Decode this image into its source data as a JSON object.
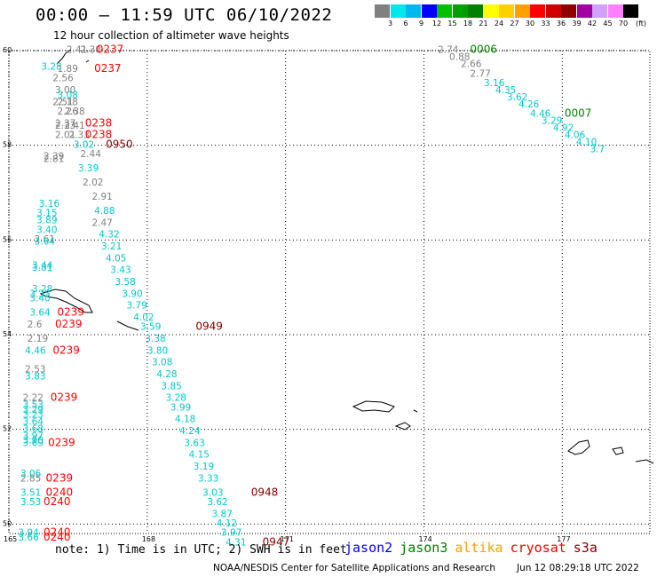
{
  "title": "00:00 – 11:59 UTC 06/10/2022",
  "subtitle": "12 hour collection of altimeter wave heights",
  "colorbar": {
    "unit": "(ft)",
    "ticks": [
      "3",
      "6",
      "9",
      "12",
      "15",
      "18",
      "21",
      "24",
      "27",
      "30",
      "33",
      "36",
      "39",
      "42",
      "45",
      "70"
    ],
    "colors": [
      "#808080",
      "#00e8e8",
      "#00b8f0",
      "#0000ff",
      "#00c000",
      "#00a000",
      "#008000",
      "#ffff00",
      "#ffd000",
      "#ffa000",
      "#ff0000",
      "#d00000",
      "#900000",
      "#a000a0",
      "#d0a0ff",
      "#ff80ff",
      "#000000"
    ]
  },
  "axes": {
    "lat_ticks": [
      "50",
      "52",
      "54",
      "56",
      "58",
      "60"
    ],
    "lon_ticks": [
      "165",
      "168",
      "171",
      "174",
      "177"
    ]
  },
  "note": "note: 1) Time is in UTC; 2) SWH is in feet",
  "missions": [
    {
      "name": "jason2",
      "color": "#0000ff"
    },
    {
      "name": "jason3",
      "color": "#008000"
    },
    {
      "name": "altika",
      "color": "#ffa000"
    },
    {
      "name": "cryosat",
      "color": "#ff0000"
    },
    {
      "name": "s3a",
      "color": "#800000"
    }
  ],
  "credit": "NOAA/NESDIS Center for Satellite Applications and Research",
  "generated": "Jun 12 08:29:18 UTC 2022",
  "obs": [
    {
      "lon": 166.25,
      "lat": 59.95,
      "v": "2.41",
      "c": "#808080"
    },
    {
      "lon": 166.55,
      "lat": 59.95,
      "v": "2.30",
      "c": "#808080"
    },
    {
      "lon": 165.7,
      "lat": 59.6,
      "v": "3.28",
      "c": "#00c8c8"
    },
    {
      "lon": 166.05,
      "lat": 59.55,
      "v": "1.89",
      "c": "#808080"
    },
    {
      "lon": 165.95,
      "lat": 59.35,
      "v": "2.56",
      "c": "#808080"
    },
    {
      "lon": 166.0,
      "lat": 59.1,
      "v": "3.00",
      "c": "#808080"
    },
    {
      "lon": 166.05,
      "lat": 59.0,
      "v": "3.08",
      "c": "#00c8c8"
    },
    {
      "lon": 165.95,
      "lat": 58.85,
      "v": "2.51",
      "c": "#808080"
    },
    {
      "lon": 166.05,
      "lat": 58.85,
      "v": "2.18",
      "c": "#808080"
    },
    {
      "lon": 166.05,
      "lat": 58.65,
      "v": "2.26",
      "c": "#808080"
    },
    {
      "lon": 166.2,
      "lat": 58.65,
      "v": "2.38",
      "c": "#808080"
    },
    {
      "lon": 166.0,
      "lat": 58.4,
      "v": "2.37",
      "c": "#808080"
    },
    {
      "lon": 166.0,
      "lat": 58.35,
      "v": "2.33",
      "c": "#808080"
    },
    {
      "lon": 166.2,
      "lat": 58.35,
      "v": "2.41",
      "c": "#808080"
    },
    {
      "lon": 166.0,
      "lat": 58.15,
      "v": "2.01",
      "c": "#808080"
    },
    {
      "lon": 166.3,
      "lat": 58.15,
      "v": "2.33",
      "c": "#808080"
    },
    {
      "lon": 166.4,
      "lat": 57.95,
      "v": "3.02",
      "c": "#00c8c8"
    },
    {
      "lon": 166.55,
      "lat": 57.75,
      "v": "2.44",
      "c": "#808080"
    },
    {
      "lon": 165.75,
      "lat": 57.7,
      "v": "2.39",
      "c": "#808080"
    },
    {
      "lon": 165.75,
      "lat": 57.65,
      "v": "2.81",
      "c": "#808080"
    },
    {
      "lon": 166.5,
      "lat": 57.45,
      "v": "3.39",
      "c": "#00c8c8"
    },
    {
      "lon": 166.6,
      "lat": 57.15,
      "v": "2.02",
      "c": "#808080"
    },
    {
      "lon": 166.8,
      "lat": 56.85,
      "v": "2.91",
      "c": "#808080"
    },
    {
      "lon": 165.65,
      "lat": 56.7,
      "v": "3.16",
      "c": "#00c8c8"
    },
    {
      "lon": 165.6,
      "lat": 56.5,
      "v": "3.15",
      "c": "#00c8c8"
    },
    {
      "lon": 166.85,
      "lat": 56.55,
      "v": "4.88",
      "c": "#00c8c8"
    },
    {
      "lon": 165.6,
      "lat": 56.35,
      "v": "3.89",
      "c": "#00c8c8"
    },
    {
      "lon": 166.8,
      "lat": 56.3,
      "v": "2.47",
      "c": "#808080"
    },
    {
      "lon": 165.6,
      "lat": 56.15,
      "v": "3.40",
      "c": "#00c8c8"
    },
    {
      "lon": 166.95,
      "lat": 56.05,
      "v": "4.32",
      "c": "#00c8c8"
    },
    {
      "lon": 165.55,
      "lat": 55.95,
      "v": "2.61",
      "c": "#808080"
    },
    {
      "lon": 165.55,
      "lat": 55.9,
      "v": "3.64",
      "c": "#00c8c8"
    },
    {
      "lon": 167.0,
      "lat": 55.8,
      "v": "3.21",
      "c": "#00c8c8"
    },
    {
      "lon": 165.5,
      "lat": 55.4,
      "v": "3.44",
      "c": "#00c8c8"
    },
    {
      "lon": 165.5,
      "lat": 55.35,
      "v": "3.81",
      "c": "#00c8c8"
    },
    {
      "lon": 167.1,
      "lat": 55.55,
      "v": "4.05",
      "c": "#00c8c8"
    },
    {
      "lon": 167.2,
      "lat": 55.3,
      "v": "3.43",
      "c": "#00c8c8"
    },
    {
      "lon": 167.3,
      "lat": 55.05,
      "v": "3.58",
      "c": "#00c8c8"
    },
    {
      "lon": 165.5,
      "lat": 54.9,
      "v": "3.28",
      "c": "#00c8c8"
    },
    {
      "lon": 165.45,
      "lat": 54.8,
      "v": "3.35",
      "c": "#00c8c8"
    },
    {
      "lon": 165.45,
      "lat": 54.7,
      "v": "3.40",
      "c": "#00c8c8"
    },
    {
      "lon": 167.45,
      "lat": 54.8,
      "v": "3.90",
      "c": "#00c8c8"
    },
    {
      "lon": 167.55,
      "lat": 54.55,
      "v": "3.79",
      "c": "#00c8c8"
    },
    {
      "lon": 165.45,
      "lat": 54.4,
      "v": "3.64",
      "c": "#00c8c8"
    },
    {
      "lon": 167.7,
      "lat": 54.3,
      "v": "4.02",
      "c": "#00c8c8"
    },
    {
      "lon": 165.4,
      "lat": 54.15,
      "v": "2.6",
      "c": "#808080"
    },
    {
      "lon": 167.85,
      "lat": 54.1,
      "v": "3.59",
      "c": "#00c8c8"
    },
    {
      "lon": 167.95,
      "lat": 53.85,
      "v": "3.38",
      "c": "#00c8c8"
    },
    {
      "lon": 165.4,
      "lat": 53.85,
      "v": "2.19",
      "c": "#808080"
    },
    {
      "lon": 168.0,
      "lat": 53.6,
      "v": "3.80",
      "c": "#00c8c8"
    },
    {
      "lon": 165.35,
      "lat": 53.6,
      "v": "4.46",
      "c": "#00c8c8"
    },
    {
      "lon": 168.1,
      "lat": 53.35,
      "v": "3.08",
      "c": "#00c8c8"
    },
    {
      "lon": 165.35,
      "lat": 53.2,
      "v": "2.53",
      "c": "#808080"
    },
    {
      "lon": 168.2,
      "lat": 53.1,
      "v": "4.28",
      "c": "#00c8c8"
    },
    {
      "lon": 165.35,
      "lat": 53.05,
      "v": "3.83",
      "c": "#00c8c8"
    },
    {
      "lon": 168.3,
      "lat": 52.85,
      "v": "3.85",
      "c": "#00c8c8"
    },
    {
      "lon": 168.4,
      "lat": 52.6,
      "v": "3.28",
      "c": "#00c8c8"
    },
    {
      "lon": 165.3,
      "lat": 52.6,
      "v": "2.22",
      "c": "#808080"
    },
    {
      "lon": 168.5,
      "lat": 52.4,
      "v": "3.99",
      "c": "#00c8c8"
    },
    {
      "lon": 165.3,
      "lat": 52.45,
      "v": "3.53",
      "c": "#00c8c8"
    },
    {
      "lon": 165.3,
      "lat": 52.35,
      "v": "3.29",
      "c": "#00c8c8"
    },
    {
      "lon": 165.3,
      "lat": 52.25,
      "v": "3.23",
      "c": "#00c8c8"
    },
    {
      "lon": 168.6,
      "lat": 52.15,
      "v": "4.18",
      "c": "#00c8c8"
    },
    {
      "lon": 165.3,
      "lat": 52.1,
      "v": "3.64",
      "c": "#00c8c8"
    },
    {
      "lon": 168.7,
      "lat": 51.9,
      "v": "4.24",
      "c": "#00c8c8"
    },
    {
      "lon": 165.3,
      "lat": 51.95,
      "v": "3.68",
      "c": "#00c8c8"
    },
    {
      "lon": 165.3,
      "lat": 51.8,
      "v": "3.97",
      "c": "#00c8c8"
    },
    {
      "lon": 168.8,
      "lat": 51.65,
      "v": "3.63",
      "c": "#00c8c8"
    },
    {
      "lon": 165.3,
      "lat": 51.7,
      "v": "3.90",
      "c": "#00c8c8"
    },
    {
      "lon": 165.3,
      "lat": 51.65,
      "v": "3.69",
      "c": "#00c8c8"
    },
    {
      "lon": 168.9,
      "lat": 51.4,
      "v": "4.15",
      "c": "#00c8c8"
    },
    {
      "lon": 169.0,
      "lat": 51.15,
      "v": "3.19",
      "c": "#00c8c8"
    },
    {
      "lon": 165.25,
      "lat": 51.0,
      "v": "3.06",
      "c": "#00c8c8"
    },
    {
      "lon": 169.1,
      "lat": 50.9,
      "v": "3.33",
      "c": "#00c8c8"
    },
    {
      "lon": 165.25,
      "lat": 50.9,
      "v": "2.85",
      "c": "#808080"
    },
    {
      "lon": 169.2,
      "lat": 50.6,
      "v": "3.03",
      "c": "#00c8c8"
    },
    {
      "lon": 165.25,
      "lat": 50.6,
      "v": "3.51",
      "c": "#00c8c8"
    },
    {
      "lon": 169.3,
      "lat": 50.4,
      "v": "3.62",
      "c": "#00c8c8"
    },
    {
      "lon": 165.25,
      "lat": 50.4,
      "v": "3.53",
      "c": "#00c8c8"
    },
    {
      "lon": 169.4,
      "lat": 50.15,
      "v": "3.87",
      "c": "#00c8c8"
    },
    {
      "lon": 169.5,
      "lat": 49.95,
      "v": "4.12",
      "c": "#00c8c8"
    },
    {
      "lon": 165.2,
      "lat": 49.75,
      "v": "3.94",
      "c": "#00c8c8"
    },
    {
      "lon": 169.6,
      "lat": 49.75,
      "v": "3.97",
      "c": "#00c8c8"
    },
    {
      "lon": 165.2,
      "lat": 49.65,
      "v": "3.66",
      "c": "#00c8c8"
    },
    {
      "lon": 169.7,
      "lat": 49.55,
      "v": "4.31",
      "c": "#00c8c8"
    },
    {
      "lon": 174.3,
      "lat": 59.95,
      "v": "2.74",
      "c": "#808080"
    },
    {
      "lon": 174.55,
      "lat": 59.8,
      "v": "0.88",
      "c": "#808080"
    },
    {
      "lon": 174.8,
      "lat": 59.65,
      "v": "2.66",
      "c": "#808080"
    },
    {
      "lon": 175.0,
      "lat": 59.45,
      "v": "2.77",
      "c": "#808080"
    },
    {
      "lon": 175.3,
      "lat": 59.25,
      "v": "3.16",
      "c": "#00c8c8"
    },
    {
      "lon": 175.55,
      "lat": 59.1,
      "v": "4.35",
      "c": "#00c8c8"
    },
    {
      "lon": 175.8,
      "lat": 58.95,
      "v": "3.62",
      "c": "#00c8c8"
    },
    {
      "lon": 176.05,
      "lat": 58.8,
      "v": "4.26",
      "c": "#00c8c8"
    },
    {
      "lon": 176.3,
      "lat": 58.6,
      "v": "4.46",
      "c": "#00c8c8"
    },
    {
      "lon": 176.55,
      "lat": 58.45,
      "v": "3.29",
      "c": "#00c8c8"
    },
    {
      "lon": 176.8,
      "lat": 58.3,
      "v": "4.92",
      "c": "#00c8c8"
    },
    {
      "lon": 177.05,
      "lat": 58.15,
      "v": "4.06",
      "c": "#00c8c8"
    },
    {
      "lon": 177.3,
      "lat": 58.0,
      "v": "4.10",
      "c": "#00c8c8"
    },
    {
      "lon": 177.6,
      "lat": 57.85,
      "v": "3.7",
      "c": "#00c8c8"
    }
  ],
  "times": [
    {
      "lon": 166.9,
      "lat": 59.95,
      "v": "0237",
      "c": "#ff0000"
    },
    {
      "lon": 166.85,
      "lat": 59.55,
      "v": "0237",
      "c": "#ff0000"
    },
    {
      "lon": 166.65,
      "lat": 58.4,
      "v": "0238",
      "c": "#ff0000"
    },
    {
      "lon": 166.65,
      "lat": 58.15,
      "v": "0238",
      "c": "#ff0000"
    },
    {
      "lon": 167.1,
      "lat": 57.95,
      "v": "0950",
      "c": "#800000"
    },
    {
      "lon": 166.05,
      "lat": 54.4,
      "v": "0239",
      "c": "#ff0000"
    },
    {
      "lon": 166.0,
      "lat": 54.15,
      "v": "0239",
      "c": "#ff0000"
    },
    {
      "lon": 169.05,
      "lat": 54.1,
      "v": "0949",
      "c": "#800000"
    },
    {
      "lon": 165.95,
      "lat": 53.6,
      "v": "0239",
      "c": "#ff0000"
    },
    {
      "lon": 165.9,
      "lat": 52.6,
      "v": "0239",
      "c": "#ff0000"
    },
    {
      "lon": 165.85,
      "lat": 51.65,
      "v": "0239",
      "c": "#ff0000"
    },
    {
      "lon": 165.8,
      "lat": 50.9,
      "v": "0239",
      "c": "#ff0000"
    },
    {
      "lon": 165.8,
      "lat": 50.6,
      "v": "0240",
      "c": "#ff0000"
    },
    {
      "lon": 165.75,
      "lat": 50.4,
      "v": "0240",
      "c": "#ff0000"
    },
    {
      "lon": 165.75,
      "lat": 49.75,
      "v": "0240",
      "c": "#ff0000"
    },
    {
      "lon": 165.75,
      "lat": 49.65,
      "v": "0240",
      "c": "#ff0000"
    },
    {
      "lon": 170.25,
      "lat": 50.6,
      "v": "0948",
      "c": "#800000"
    },
    {
      "lon": 170.5,
      "lat": 49.55,
      "v": "0947",
      "c": "#800000"
    },
    {
      "lon": 175.0,
      "lat": 59.95,
      "v": "0006",
      "c": "#008000"
    },
    {
      "lon": 177.05,
      "lat": 58.6,
      "v": "0007",
      "c": "#008000"
    }
  ]
}
